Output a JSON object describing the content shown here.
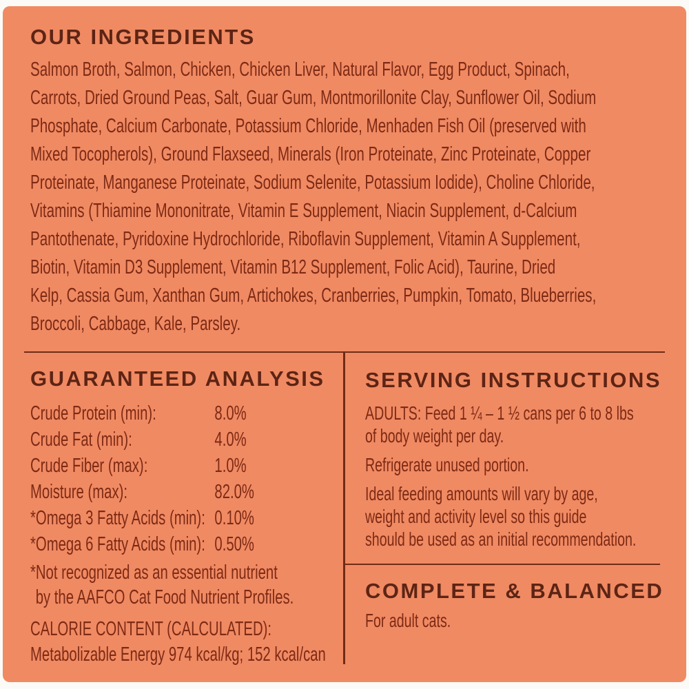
{
  "colors": {
    "background": "#f08a63",
    "heading_text": "#5d2414",
    "body_text": "#7d2a14",
    "divider": "#6f2b15",
    "outer_border": "#fbfaf6"
  },
  "ingredients": {
    "title": "OUR INGREDIENTS",
    "lines": [
      "Salmon Broth, Salmon, Chicken, Chicken Liver, Natural Flavor, Egg Product, Spinach,",
      "Carrots, Dried Ground Peas, Salt, Guar Gum, Montmorillonite Clay, Sunflower Oil, Sodium",
      "Phosphate, Calcium Carbonate, Potassium Chloride, Menhaden Fish Oil (preserved with",
      "Mixed Tocopherols), Ground Flaxseed, Minerals (Iron Proteinate, Zinc Proteinate, Copper",
      "Proteinate, Manganese Proteinate, Sodium Selenite, Potassium Iodide), Choline Chloride,",
      "Vitamins (Thiamine Mononitrate, Vitamin E Supplement, Niacin Supplement, d-Calcium",
      "Pantothenate, Pyridoxine Hydrochloride, Riboflavin Supplement, Vitamin A Supplement,",
      "Biotin, Vitamin D3 Supplement, Vitamin B12 Supplement, Folic Acid), Taurine, Dried",
      "Kelp, Cassia Gum, Xanthan Gum, Artichokes, Cranberries, Pumpkin, Tomato, Blueberries,",
      "Broccoli, Cabbage, Kale, Parsley."
    ]
  },
  "guaranteed_analysis": {
    "title": "GUARANTEED ANALYSIS",
    "rows": [
      {
        "label": "Crude Protein (min):",
        "value": "8.0%"
      },
      {
        "label": "Crude Fat (min):",
        "value": "4.0%"
      },
      {
        "label": "Crude Fiber (max):",
        "value": "1.0%"
      },
      {
        "label": "Moisture (max):",
        "value": "82.0%"
      },
      {
        "label": "*Omega 3 Fatty Acids (min):",
        "value": "0.10%"
      },
      {
        "label": "*Omega 6 Fatty Acids (min):",
        "value": "0.50%"
      }
    ],
    "footnote_lines": [
      "*Not recognized as an essential nutrient",
      "by the AAFCO Cat Food Nutrient Profiles."
    ],
    "calorie_heading": "CALORIE CONTENT (CALCULATED):",
    "calorie_text": "Metabolizable Energy 974 kcal/kg; 152 kcal/can"
  },
  "serving_instructions": {
    "title": "SERVING INSTRUCTIONS",
    "paragraphs": [
      "ADULTS: Feed 1 ¼ – 1 ½ cans per 6 to 8 lbs\nof body weight per day.",
      "Refrigerate unused portion.",
      "Ideal feeding amounts will vary by age,\nweight and activity level so this guide\nshould be used as an initial recommendation."
    ]
  },
  "complete_balanced": {
    "title": "COMPLETE & BALANCED",
    "text": "For adult cats."
  }
}
